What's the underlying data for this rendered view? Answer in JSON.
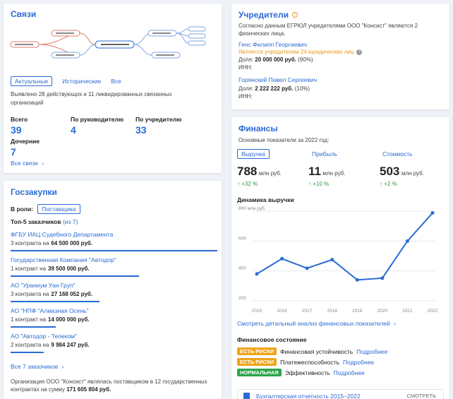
{
  "svyazi": {
    "title": "Связи",
    "tabs": [
      "Актуальные",
      "Исторические",
      "Все"
    ],
    "summary": "Выявлено 28 действующих и 11 ликвидированных связанных организаций",
    "stats": [
      {
        "label": "Всего",
        "value": "39"
      },
      {
        "label": "По руководителю",
        "value": "4"
      },
      {
        "label": "По учредителю",
        "value": "33"
      }
    ],
    "daughter_label": "Дочерние",
    "daughter_value": "7",
    "all_link": "Все связи"
  },
  "goszakupki": {
    "title": "Госзакупки",
    "role_label": "В роли:",
    "role_value": "Поставщика",
    "top_label": "Топ-5 заказчиков",
    "top_of": "(из 7)",
    "customers": [
      {
        "name": "ФГБУ ИАЦ Судебного Департамента",
        "count": "3 контракта на",
        "sum": "64 500 000 руб.",
        "share": 1.0
      },
      {
        "name": "Государственная Компания \"Автодор\"",
        "count": "1 контракт на",
        "sum": "39 500 000 руб.",
        "share": 0.62
      },
      {
        "name": "АО \"Ураниум Уан Груп\"",
        "count": "3 контракта на",
        "sum": "27 168 052 руб.",
        "share": 0.43
      },
      {
        "name": "АО \"НПФ \"Алмазная Осень\"",
        "count": "1 контракт на",
        "sum": "14 000 000 руб.",
        "share": 0.22
      },
      {
        "name": "АО \"Автодор - Телеком\"",
        "count": "2 контракта на",
        "sum": "9 984 247 руб.",
        "share": 0.16
      }
    ],
    "all_link": "Все 7 заказчиков",
    "footer_1": "Организация ООО \"Консист\" являлась поставщиком в 12 государственных",
    "footer_2_pre": "контрактах на сумму",
    "footer_2_sum": "171 605 804 руб."
  },
  "uchrediteli": {
    "title": "Учредители",
    "intro_1": "Согласно данным ЕГРЮЛ учредителями ООО \"Консист\" являются 2",
    "intro_2": "физических лица.",
    "persons": [
      {
        "name": "Генс Филипп Георгиевич",
        "note": "Является учредителем 24 юридических лиц",
        "share_pre": "Доля:",
        "share_sum": "20 000 000 руб.",
        "share_pct": "(90%)",
        "inn": "ИНН:"
      },
      {
        "name": "Горянский Павел Сергеевич",
        "note": "",
        "share_pre": "Доля:",
        "share_sum": "2 222 222 руб.",
        "share_pct": "(10%)",
        "inn": "ИНН:"
      }
    ]
  },
  "finansy": {
    "title": "Финансы",
    "subtitle": "Основные показатели за 2022 год:",
    "tabs": [
      "Выручка",
      "Прибыль",
      "Стоимость"
    ],
    "metrics": [
      {
        "value": "788",
        "unit": "млн руб.",
        "change": "↑ +32 %"
      },
      {
        "value": "11",
        "unit": "млн руб.",
        "change": "↑ +10 %"
      },
      {
        "value": "503",
        "unit": "млн руб.",
        "change": "↑ +2 %"
      }
    ],
    "dynamics_title": "Динамика выручки",
    "analysis_link": "Смотреть детальный анализ финансовых показателей",
    "state_title": "Финансовое состояние",
    "states": [
      {
        "badge": "ЕСТЬ РИСКИ",
        "kind": "risk",
        "label": "Финансовая устойчивость",
        "link": "Подробнее"
      },
      {
        "badge": "ЕСТЬ РИСКИ",
        "kind": "risk",
        "label": "Платежеспособность",
        "link": "Подробнее"
      },
      {
        "badge": "НОРМАЛЬНАЯ",
        "kind": "ok",
        "label": "Эффективность",
        "link": "Подробнее"
      }
    ],
    "report_link": "Бухгалтерская отчетность 2015–2022",
    "report_action": "СМОТРЕТЬ"
  },
  "chart_data": {
    "type": "line",
    "title": "Динамика выручки",
    "x": [
      "2015",
      "2016",
      "2017",
      "2018",
      "2019",
      "2020",
      "2021",
      "2022"
    ],
    "series": [
      {
        "values": [
          380,
          482,
          418,
          475,
          340,
          352,
          600,
          788
        ]
      }
    ],
    "ylim": [
      200,
      800
    ],
    "yticks": [
      200,
      400,
      600,
      800
    ],
    "ytick_labels": [
      "200",
      "400",
      "600",
      "800 млн руб."
    ],
    "grid": true,
    "color": "#2a6bd4"
  }
}
